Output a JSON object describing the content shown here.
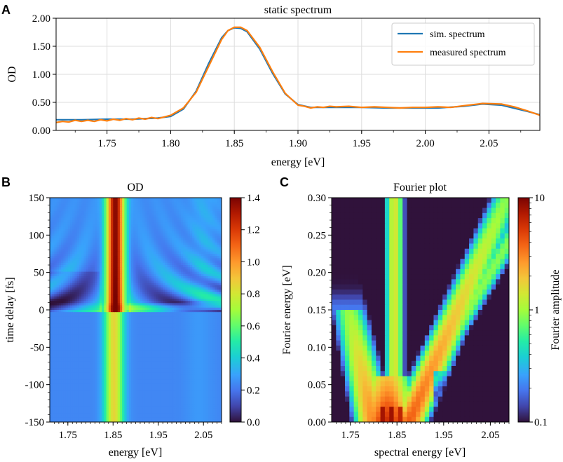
{
  "chart_data": [
    {
      "type": "line",
      "panel_letter": "A",
      "title": "static spectrum",
      "xlabel": "energy [eV]",
      "ylabel": "OD",
      "xlim": [
        1.71,
        2.09
      ],
      "ylim": [
        0.0,
        2.0
      ],
      "xticks": [
        "1.75",
        "1.80",
        "1.85",
        "1.90",
        "1.95",
        "2.00",
        "2.05"
      ],
      "yticks": [
        "0.00",
        "0.50",
        "1.00",
        "1.50",
        "2.00"
      ],
      "grid": true,
      "legend_position": "top-right",
      "series": [
        {
          "name": "sim. spectrum",
          "color": "#1f77b4",
          "x": [
            1.71,
            1.73,
            1.75,
            1.77,
            1.79,
            1.8,
            1.81,
            1.82,
            1.83,
            1.84,
            1.845,
            1.85,
            1.855,
            1.86,
            1.87,
            1.88,
            1.89,
            1.9,
            1.91,
            1.93,
            1.95,
            1.97,
            1.99,
            2.01,
            2.03,
            2.045,
            2.06,
            2.08,
            2.09
          ],
          "y": [
            0.19,
            0.19,
            0.2,
            0.2,
            0.22,
            0.25,
            0.38,
            0.7,
            1.2,
            1.65,
            1.78,
            1.83,
            1.82,
            1.76,
            1.45,
            1.02,
            0.65,
            0.46,
            0.41,
            0.41,
            0.41,
            0.4,
            0.4,
            0.4,
            0.43,
            0.47,
            0.45,
            0.34,
            0.28
          ]
        },
        {
          "name": "measured spectrum",
          "color": "#ff7f0e",
          "x": [
            1.71,
            1.715,
            1.72,
            1.725,
            1.73,
            1.735,
            1.74,
            1.745,
            1.75,
            1.755,
            1.76,
            1.765,
            1.77,
            1.775,
            1.78,
            1.785,
            1.79,
            1.795,
            1.8,
            1.81,
            1.82,
            1.83,
            1.84,
            1.845,
            1.85,
            1.855,
            1.86,
            1.87,
            1.88,
            1.89,
            1.9,
            1.905,
            1.91,
            1.915,
            1.92,
            1.925,
            1.93,
            1.94,
            1.95,
            1.96,
            1.97,
            1.98,
            1.99,
            2.0,
            2.01,
            2.02,
            2.03,
            2.045,
            2.06,
            2.07,
            2.08,
            2.09
          ],
          "y": [
            0.14,
            0.16,
            0.15,
            0.18,
            0.16,
            0.18,
            0.16,
            0.19,
            0.17,
            0.2,
            0.18,
            0.21,
            0.19,
            0.22,
            0.2,
            0.23,
            0.21,
            0.24,
            0.27,
            0.4,
            0.68,
            1.15,
            1.62,
            1.78,
            1.84,
            1.84,
            1.78,
            1.48,
            1.05,
            0.66,
            0.45,
            0.43,
            0.4,
            0.42,
            0.41,
            0.43,
            0.42,
            0.43,
            0.41,
            0.42,
            0.41,
            0.4,
            0.41,
            0.41,
            0.42,
            0.41,
            0.44,
            0.48,
            0.47,
            0.42,
            0.35,
            0.27
          ]
        }
      ]
    },
    {
      "type": "heatmap",
      "panel_letter": "B",
      "title": "OD",
      "xlabel": "energy [eV]",
      "ylabel": "time delay [fs]",
      "xlim": [
        1.71,
        2.09
      ],
      "ylim": [
        -150,
        150
      ],
      "xticks": [
        "1.75",
        "1.85",
        "1.95",
        "2.05"
      ],
      "yticks": [
        "-150",
        "-100",
        "-50",
        "0",
        "50",
        "100",
        "150"
      ],
      "colorbar": {
        "ticks": [
          "0.0",
          "0.2",
          "0.4",
          "0.6",
          "0.8",
          "1.0",
          "1.2",
          "1.4"
        ],
        "range": [
          0.0,
          1.4
        ]
      },
      "description_values": {
        "peak_center_eV": 1.85,
        "peak_max_OD_positive_delay": 1.4,
        "peak_max_OD_negative_delay": 0.9,
        "background_OD": 0.25,
        "time_zero_fs": 0
      }
    },
    {
      "type": "heatmap",
      "panel_letter": "C",
      "title": "Fourier plot",
      "xlabel": "spectral energy [eV]",
      "ylabel": "Fourier energy [eV]",
      "xlim": [
        1.71,
        2.09
      ],
      "ylim": [
        0.0,
        0.3
      ],
      "xticks": [
        "1.75",
        "1.85",
        "1.95",
        "2.05"
      ],
      "yticks": [
        "0.00",
        "0.05",
        "0.10",
        "0.15",
        "0.20",
        "0.25",
        "0.30"
      ],
      "colorbar": {
        "label": "Fourier amplitude",
        "scale": "log",
        "ticks": [
          "0.1",
          "1",
          "10"
        ],
        "range": [
          0.1,
          10
        ]
      },
      "description_values": {
        "central_ridge_eV": 1.845,
        "max_amplitude": 10,
        "min_amplitude": 0.1
      }
    }
  ]
}
